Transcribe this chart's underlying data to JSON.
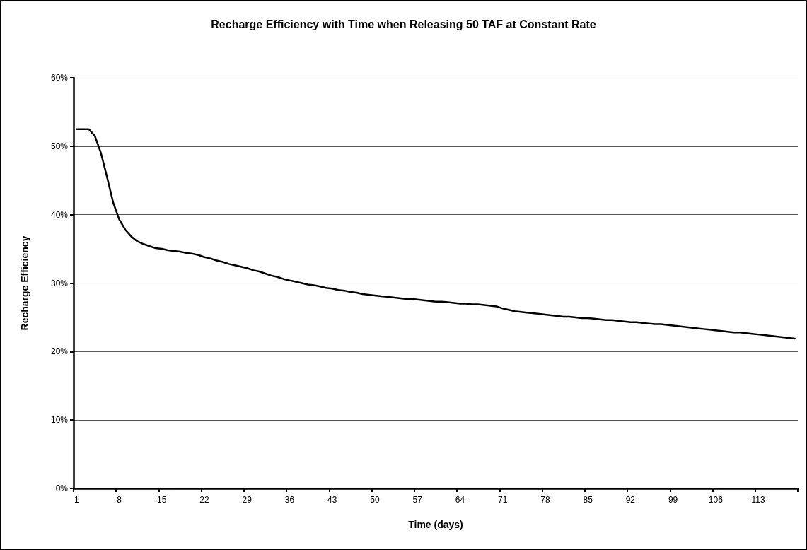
{
  "chart_data": {
    "type": "line",
    "title": "Recharge Efficiency with Time when Releasing 50 TAF at Constant Rate",
    "xlabel": "Time (days)",
    "ylabel": "Recharge Efficiency",
    "categories": [
      "1",
      null,
      null,
      null,
      null,
      null,
      null,
      "8",
      null,
      null,
      null,
      null,
      null,
      null,
      "15",
      null,
      null,
      null,
      null,
      null,
      null,
      "22",
      null,
      null,
      null,
      null,
      null,
      null,
      "29",
      null,
      null,
      null,
      null,
      null,
      null,
      "36",
      null,
      null,
      null,
      null,
      null,
      null,
      "43",
      null,
      null,
      null,
      null,
      null,
      null,
      "50",
      null,
      null,
      null,
      null,
      null,
      null,
      "57",
      null,
      null,
      null,
      null,
      null,
      null,
      "64",
      null,
      null,
      null,
      null,
      null,
      null,
      "71",
      null,
      null,
      null,
      null,
      null,
      null,
      "78",
      null,
      null,
      null,
      null,
      null,
      null,
      "85",
      null,
      null,
      null,
      null,
      null,
      null,
      "92",
      null,
      null,
      null,
      null,
      null,
      null,
      "99",
      null,
      null,
      null,
      null,
      null,
      null,
      "106",
      null,
      null,
      null,
      null,
      null,
      null,
      "113",
      null,
      null,
      null,
      null,
      null,
      null
    ],
    "series": [
      {
        "color": "#000000",
        "values": [
          52.5,
          52.5,
          52.5,
          51.5,
          49.0,
          45.5,
          41.8,
          39.3,
          37.8,
          36.8,
          36.1,
          35.7,
          35.4,
          35.1,
          35.0,
          34.8,
          34.7,
          34.6,
          34.4,
          34.3,
          34.1,
          33.8,
          33.6,
          33.3,
          33.1,
          32.8,
          32.6,
          32.4,
          32.2,
          31.9,
          31.7,
          31.4,
          31.1,
          30.9,
          30.6,
          30.4,
          30.2,
          30.0,
          29.8,
          29.7,
          29.5,
          29.3,
          29.2,
          29.0,
          28.9,
          28.7,
          28.6,
          28.4,
          28.3,
          28.2,
          28.1,
          28.0,
          27.9,
          27.8,
          27.7,
          27.7,
          27.6,
          27.5,
          27.4,
          27.3,
          27.3,
          27.2,
          27.1,
          27.0,
          27.0,
          26.9,
          26.9,
          26.8,
          26.7,
          26.6,
          26.3,
          26.1,
          25.9,
          25.8,
          25.7,
          25.6,
          25.5,
          25.4,
          25.3,
          25.2,
          25.1,
          25.1,
          25.0,
          24.9,
          24.9,
          24.8,
          24.7,
          24.6,
          24.6,
          24.5,
          24.4,
          24.3,
          24.3,
          24.2,
          24.1,
          24.0,
          24.0,
          23.9,
          23.8,
          23.7,
          23.6,
          23.5,
          23.4,
          23.3,
          23.2,
          23.1,
          23.0,
          22.9,
          22.8,
          22.8,
          22.7,
          22.6,
          22.5,
          22.4,
          22.3,
          22.2,
          22.1,
          22.0,
          21.9
        ]
      }
    ],
    "ylim": [
      0,
      60
    ],
    "yticks": [
      {
        "value": 0,
        "label": "0%"
      },
      {
        "value": 10,
        "label": "10%"
      },
      {
        "value": 20,
        "label": "20%"
      },
      {
        "value": 30,
        "label": "30%"
      },
      {
        "value": 40,
        "label": "40%"
      },
      {
        "value": 50,
        "label": "50%"
      },
      {
        "value": 60,
        "label": "60%"
      }
    ],
    "grid": "y",
    "marker": "none",
    "line_style": "solid"
  }
}
